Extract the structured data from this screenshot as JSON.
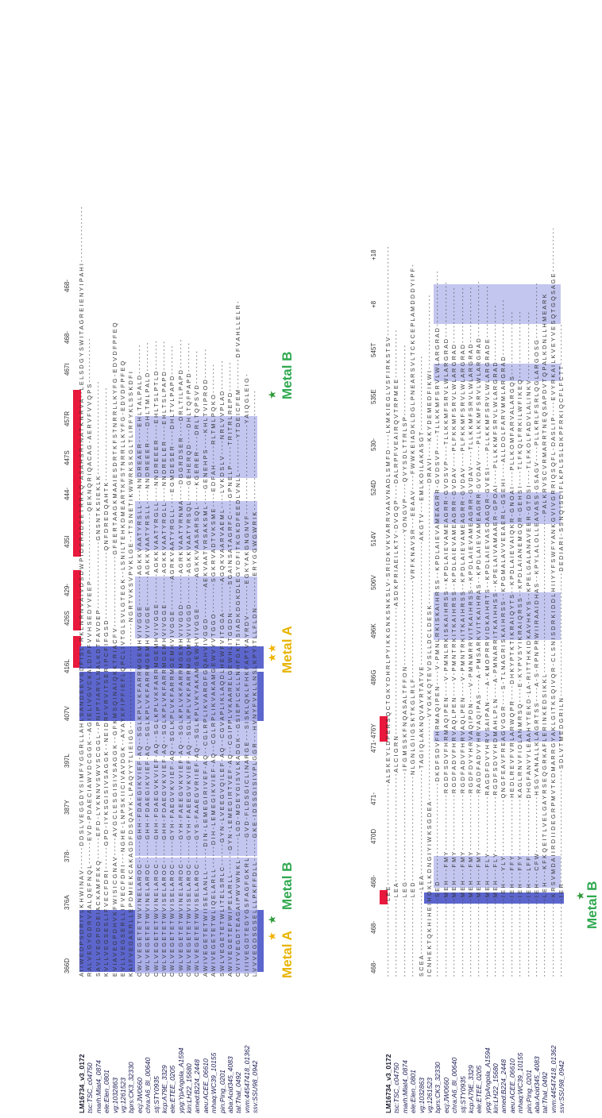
{
  "names": [
    "LM16734_v3_0172",
    "tsc:TSC_c04750",
    "marh:Mlat4_0874",
    "ele:Elen_0801",
    "vg:1032863",
    "vg:1261523",
    "bprs:CK3_32330",
    "ecj:JW0660",
    "chra:A6_8I_00640",
    "stj:STY0935",
    "kcp:A79E_3329",
    "ele:ETEE_0205",
    "ypg:YpAngola_A1594",
    "kin:LH22_15680",
    "amed:B224_2448",
    "aeu:ACEE_06610",
    "mhaq:WC39_10155",
    "pin:Ping_0201",
    "aba:Acid345_4083",
    "tal:Thal_0492",
    "vnm:44547418_01362",
    "ssv:SSU98_0942"
  ],
  "block1": {
    "positions": [
      "366D",
      "376A",
      "378-",
      "387Y",
      "397L",
      "407V",
      "416L",
      "426S",
      "429-",
      "435I",
      "444-",
      "447S",
      "457R",
      "467I",
      "468-",
      "468-"
    ],
    "labels": {
      "metal_a_left": "Metal A",
      "metal_b_left": "Metal B",
      "metal_a_mid": "Metal A",
      "metal_b_right": "Metal B"
    },
    "sequences": [
      "A I I W E D P S D R I Y L K H W I N A V - - - - - - D D S L V E G G D Y S I M F Y G G R L L A H L S A N D E E V S D F I S L - R K L N R N V A I V D S D W P I D E R A D E E T R R K Q - A S A H S R I N A T K N R V A - - L E L S D G Y S W I T A G R E I E N Y I P A H I - - - - - - - - - - - - - - -",
      "R A L V E G Y G D R V A A L Q E F N Q L - - - - - - E V D - P D A E C I A W V D C G G K - - A G I E L I V G V C K A L D I P F V V H S E D Y V E E P - - - - - - - - - - - - - - - - - - Q E K N Q R I Q A C A G - A E R V F V V Q P S - - - - - - - - - - - -",
      "S A V L V E G P D D E I A C K A M F E K Q - - - - - - E F D - L Y K N N V S W V S C G G L - - P N I P T I A R V L N A L K D T F A V D E P - - - - - - - - - - - - - - - - - - G N S N T K S I E K L K - - - - - - - - - - - - - - - - - - - - - - - - -",
      "K V L L V E G S E S L I F V E C F D R I - - - - - - G P D - I Y K S G I S I V S A G G K - - N E I D R F V R V I T S E R I P C F I F G S D - - - - - - - - - - - - - - - - - - Q N F D R E D Q A H T K - - - - - - - - - - - - - - - - - - - - - - - - -",
      "E V I A V E G P D H V K F W I S I C G N A V - - - - - A V G C L E S G I S I V S A G G K - - G F K M S Q I N A I Q K K T R I A C F V - - - - - - - - - - - - - - - - - - - G F E E R T A A G K M A A I E S D R T K F S T N R R L L K Y F G - E D V D F P F E Q",
      "E V L L V E G S E R L L I F V E C F D R I - - - N G H E - L N P S K I I C I V A V D G K - - A Y A Y K F I P F I E F L Q P C L I V T G L S V L G T E G K - - L S N I L T E H K D M E A R T K F S T N R R L L K Y F G - E D V D F P F E Q",
      "K A I F V E G A S R L L E P D M I E K C A K A G D F D S Q A Y K - L P A Q Y Y T L I E I G G - - - - - - - - - - - - - - - - - - - - - - - - - - - - N G R T V K S V P V K L G E - - T T S N E T I K W W R K S K G L T L I R F Y K L S S K D F I",
      "C W L V E G E T E T W V I N E L A R O C - - - - - - G H H - F D A E G I K V I E F - A Q - - S G L K P L V K F A R R M G E M H V I V G G E - - - - - - - - A G K K V A A T Y R S L L - - - - N N D R E A E R - - - - E H L T A L P A L D - - - - - - - -",
      "C W L V E G E T E T W V I N E L A R O C - - - - - - G H H - F D A E G I K V I E F - A Q - - S G L K P L V K F A R R M G E M H V I V G G E - - - - - - - - A G K K V A A T Y R S L L - - - - N N D R E E E R - - - - D H L T M L P A L D - - - - - - - -",
      "C W L V E G E T E T W V I N E L A R O C - - - - - - G H H - F D A E G V K V I E F - A Q - - S G L K P L V K F A R R M G E M H V I V G G E - - - - - - - - A G K K V A A T Y R G L L - - - - N N D R E E E R - - - - E H L T S L P T L D - - - - - - - -",
      "C W L V E G E T E T W V I S E L A R O C - - - - - - G H H - F D A E G V K V I E F - A Q - - S G L K P L V K F A R R M G E M H V I V G G E - - - - - - - - A G K K V A A T Y R G L L - - - - N N D R E L E R - - - - E H L T S L P A P D - - - - - - - -",
      "C W L V E G E T E T W V I S E L A R O C - - - - - - G Y H - F A E G V K V I E F - A Q - - S G L K P L V K F A R R M G E M H V I V G G E - - - - - - - - A G R K V A A T Y R G L L - - - - E G M D E S E R - - - - D H L T V L P A P D - - - - - - - -",
      "C W L V E G E T E T W V I N E L A R O C - - - - - - G Y H - F A E E G V K V I E F - A Q - - S G L K P L V K F A R R M G E M H V I V G G D - - - - - - - - A G R K V A A T Y R N M A - - - - D G G R D S E R - - - - D R L T I L P A P D - - - - - - - -",
      "C W L V E G E T E T W V I S E L A R O C - - - - - - G Y H - F A E E G V K V I E F - A Q - - S G L K P L V K F A R R M G Q M H V I V G G D - - - - - - - - A G K K V A A T Y R S Q L - - - - G E H E R Q D - - - - D H L T Q F P A P D - - - - - - - -",
      "C W L V E G E T E T W V I S E L A R O C - - - - - - G Y S - F A A E G V R I I E F - A Q - - S G L K P L V K Y A K A M G E W H V I V G G E - - - - - - - - A G K K V A A S A R S Q L - - - - - K G E R E R - - - - D R L T Q P S V D - - - - - - - - -",
      "A W I V E G E T E T W I I S E L A N L L - - - - - - D I N - L E M E G I R I V E F - A Q - - C G L R P L I K V A R D F G Q A H V I V G G D - - - - - - - - A E K V A A T Y R S A K S M L - - - - G E N E H P S - - - - K H L T V I P R O D - - - - - - - -",
      "A W I V E G E T E T W L I Q E L A R L L - - - - - - D I H - L E M E G I K V I E F - A Q - - C G L R P L I K V A K A M G E W V Y V T G G O - - - - - - - - S G K R V A D T V K S M E - - - - E D F A H - - - - - R L T M L P Q K O - - - - - - - -",
      "S W L V E G E T E T W L I T E L S R L C - - - - - - G Y N - L V E E G V Q I L E F - A Q - - C G V A P L I K L A Q D L H E W F V I T G G A - - - - - - - - A G Q K V A A R V A E M L - - - - L V K D S L V - - - - N R L V V P L A D - - - - - - - -",
      "A W I V E G E T E F W I P E L A R L L - - - - - - G Y N - L E M E G I R T V E F - A Q - - C G I P P L V K A A R E L G E W H L I T G G D N - - - - - - - S G A I N S A T A G R F C - - - - G P N E L P - - - - - T R I T R L R E P D - - - - - - - -",
      "C V I Y V E G D T E A G A I P W V W N K L - - - - - - L G D - M D E Y G I S V L K A D G K - - G S I E P L C K L L N H F G K T I S I A D K D G K D L E G Y D F I T K G K D F E E D L V N L L - - - - - - - - - Y T D E I C F E M - - - - - - - - D F V A H L L E L R -",
      "C I I I V E G D T E G Y G S F A G F G K R L - - - - - G V D - F L D S G I C L I N A R G E - - - S I S K L Q K L F H K F A P T V A Y R D V - - - - - - - - E G K Y A K G N G N V F - - - - - - - - - - - - - - - - - - - - - - - - Y A I Q G L E I G -",
      "L V V V E G D S G S E L L L P K F F D L L - - - - - - G K E - I D S S G I S I V P L G G R - - - H V N Y F V K L L N S L K P Y I T L L F L D N - - - - - - - - E R Y G G W G W R I K - - - - - - - - - - - - - - - - - - - - - - - - - - - - - - - -"
    ]
  },
  "block2": {
    "positions": [
      "468-",
      "468-",
      "468-",
      "470D",
      "471-",
      "471-",
      "476Y",
      "486G",
      "496K",
      "506V",
      "514V",
      "524D",
      "530-",
      "535E",
      "545T",
      "+8",
      "+18"
    ],
    "labels": {
      "metal_b_bottom": "Metal B"
    },
    "sequences": [
      "- - - - - - - - - - - - - - - - - - - - L E E - - - - - - - - - - - - - - - - - - - - - - - - - - - A L S K E Y L D F E R S Q C T G K Y D H R L P Y I K K G N K S N K S L V - S R I D K V K V A R R V A A V N A D L S M F D - - - - L K M K I E G L V S F I R K S T S V - - - - - - - - - - - - - - - - - - - - - - - -",
      "- - - - - - - - - - - - - - - - - - - - - L E A - - - - - - - - - - - - - - - - - - - - - - - - - - - - - A L C I G R N - - - - - - - - - - - - - - - - - - - - - - - - - - - - - - - - - - A S D K P R I A E I L K T V - D V G Q P - - - - D A L R P F V E A I R Q V T R P M E E - - - - - - - - - - - - -",
      "- - - - - - - - - - - - - - - - - - - - - L E G - - - - - - - - - - - - - - - - - - - - - - - - - - - - - I F G M S S K F N Q A S A L T F F O N - - - - - - - - - - - - - - - - - - - - - - - - - - - - - - - - - - - Y O N G V P - - - - Q V Y S D L T T R L S P - - - - - - - - - - - - - - - - - - -",
      "- - - - - - - - - - - - - - - - - - - - - L E D - - - - - - - - - - - - - - - - - - - - - - - - - - - - N L G N L G I I G S K T K G L R L F - - - - - - - - - - - - - - - - - - - - - - - - - - V R F K N A V S R - - - E E A A V - - - - F W W K E I A D K L D G L P N E A R S V L T C K C E P L A M D D D Y I P F -",
      "S C E A - - - - - - - - - - - - - - - - - L E A - - - - - - - - - - - - - - - - - - - - - - - - - - - - T A G I Q L A K N Q V A Y R T A T V E - - - - - - - - - - - - - - - - - - - - - - - - - - - - - - - - - A K G T V - - - E M L K O I L A K A S G T - - - - - - - - - - - - - - - - - - - -",
      "I C N H E K T Q K H I H E I H O K L K D N G I Y I W K S G D E A - - - - - - - - - - - - - - - - - - - - - - V Y G K K Q T E V D S L L D C L D E S K - - - - - - - - - - - - - - - - - - - - - - - - - - - - - - - - D R A V I - - - - K K Y D E M E D F I K W I - - - - - - - - - - - - - - - - - - - -",
      "- - - - - - - - - - - - - - - - - - - - - S E D - - - - - - - - - - - - - - - - - - - - - - - - - - D K D F S D V F H R M A Q I P E N - - - - V - P M N L R K I S K A I H R S S - - K P D L A I E V A M E A G R R - G V D S V P - - - - T L L K K M F S R V L W L A R G R A D - - - - - - - - - - - - - - -",
      "- - - - - - - - - - - - - - - - - - - - - M E H - - - F M Y - - - - - - - - - - - - - - - R G D F S D V F H R M A Q I P E N - - - - V - P M N L R K I S K A I H R S S - - K P D L A I E V A M E A G R R - G V D S V P - - - - T L L K K M F S R V L W L A R G R A D - - - - - - - - - - - - - - -",
      "- - - - - - - - - - - - - - - - - - - - - M E H - - - F M Y - - - - - - - - - - - - - - - R G D F A D V F H R V A Q L P E N - - - - V - P M N T R K I T K A I H R S S - - K P D L A I E V A M E A G R R - G V D A V - - - - P L F K K M F S R V L W L A R G R A D - - - - - - - - - - - - - - -",
      "- - - - - - - - - - - - - - - - - - - - - M E H - - - F M Y - - - - - - - - - - - - - - - R G D F A D V F H R V A Q L P E N - - - - V - P M N T R K I T K A I H R S S - - K P D L A I E V A M E A G R R - G V D A V - - - - P L F K K M F S R V L W L A R G R A D - - - - - - - - - - - - - - -",
      "- - - - - - - - - - - - - - - - - - - - - M E H - - - F M Y - - - - - - - - - - - - - - - R G D F D V Y H R V A Q I P D N - - - - V - P M N M R R V I T K A I H R S S - - K P D L A I E V A M E A G R R - G V D A V - - - - T L L K K M F S R V L W L A R G R A D - - - - - - - - - - - - - - -",
      "- - - - - - - - - - - - - - - - - - - - - M E H - - - F M Y - - - - - - - - - - - - - - - R A G D F A D V Y H R V A Q I P A S - - - - A - P M S A R K V I T K A I H R A S - - K P D L A I E V A M E A G R R - G V D A V - - - - P L L K K M F S R V L W L A R G R A D - - - - - - - - - - - - - - -",
      "- - - - - - - - - - - - - - - - - - - - - M E H - - - F L Y - - - - - - - - - - - - - - - R A G D F D V Y H R V S A I P A N - - - - A - K M O P R R V I D K A I H R T S - - K P D L A I E V A S O A G Q R - G V E S I - - - - P L L K K M F S R V L W L A R G R A D E - - - - - - - - - - - - - -",
      "- - - - - - - - - - - - - - - - - - - - - M E H - - - F L Y - - - - - - - - - - - - - - - R G D F S D V Y H D M A H L P L N - - - - A - P M N A R R I T K A I H H S S - - K P E L A I V A M A A E R - G P O A I - - - - P L L K K M F S R V L W L A R G R A D - - - - - - - - - - - - - - -",
      "- - - - - - - - - - - - - - - - - - - - - I E H - - - Y L Y - - - - - - - - - - - - - - - Q N G F E A V F R E A G V G G R - - - - S - T L N A G R I S K A I H R S S - - K P G M A L A V V E E A E R L - G S E H I - - - - A L L D O L F A R V M M L A R G R A D - - - - - - - - - - - - - - -",
      "- - - - - - - - - - - - - - - - - - - - - I E H - - - F F Y - - - - - - - - - - - - - - - H E D L R E V F V R L A R W Q P R - - - - D H K Y P T K T I K R A I Q Y T S - - K P D L A I E V A I Q K R - G N O A I - - - - P L L K O M F A R V A L A R G Q S - - - - - - - - - - - - - - - - -",
      "- - - - - - - - - - - - - - - - - - - - - I E H - - - F F Y - - - - - - - - - - - - - - - K A G L R N V F I O L A N M R S Q - - - - E - K Y P V S Y I K R A I Q R S S - - K P D L A I A N E M G Q R - G E H S I - - - - T L F K Q L F R K I L W F I K E Q - - - - - - - - - - - - - - - - - -",
      "- - - - - - - - - - - - - - - - - - - - - I E H - - - L F F - - - - - - - - - - - - - - - D H G F A N V Y L E A A H Y T E K D - L A - R I T T H K I D K A V H K Y S - - K P E L G A L A N A V E E R - G T D S I - - - - T L F K O L F A D V L A L I N K V - - - - - - - - - - - - - - - - - -",
      "- - - - - - - - - - - - - - - - - - - - - I E H - - - C F W - - - - - - - - - - - - - - - H S G Y A N A L L K L A G R T S S - - - - A - S - R P N P R W I I R A A I D H A S - - K P Y L A L O L L E A V A S S - G S A G V - - - - P L L K R L F S R L Q G L A R G O S G - - - - - - - - - - - - - - -",
      "- - - - - - - - - - - - - - - - - - - - - L E H - - - K F K Q E I T L V E L G A Y R S E Q G R K A F L E R I N K E D S I K K L - - - - - - - - - - - - - - - - - - - - - - - - - - - - - - - - - - - - - - - - - - P A L K R V S C V R M A R R T N E Q S A P D V T Q P A L K D N L L H M E A R K",
      "- - - - - - - - - - - - - - - - - - - - - K R S V M D A I I R D I I D E G R P M V T K D M A R R G Y A K L G I T K S Q I V Q R - C L S N I S D R K I D D L H I I Y Y F S W F Y A N K G V I V G R R I Q S Q F L - D A S L I P - - - - E V Y R K A I L K V E Y V E S Q T G Q S A G E - - - - - - - - - - - -",
      "- - - - - - - - - - - - - - - - - - - - - I E R - - - - - - - - - - - - - - - - - - - - - - - - - - - - - - S D L V T M E D G R I L N - - - - - - - - - - - - - - - - - - - - - - - - - - - - - - - - - D E D I A R I - S S N Q I S D I F L K P L S S L D K P F R K I Q C F L F C T T - - - - - - - - - - -"
    ]
  }
}
